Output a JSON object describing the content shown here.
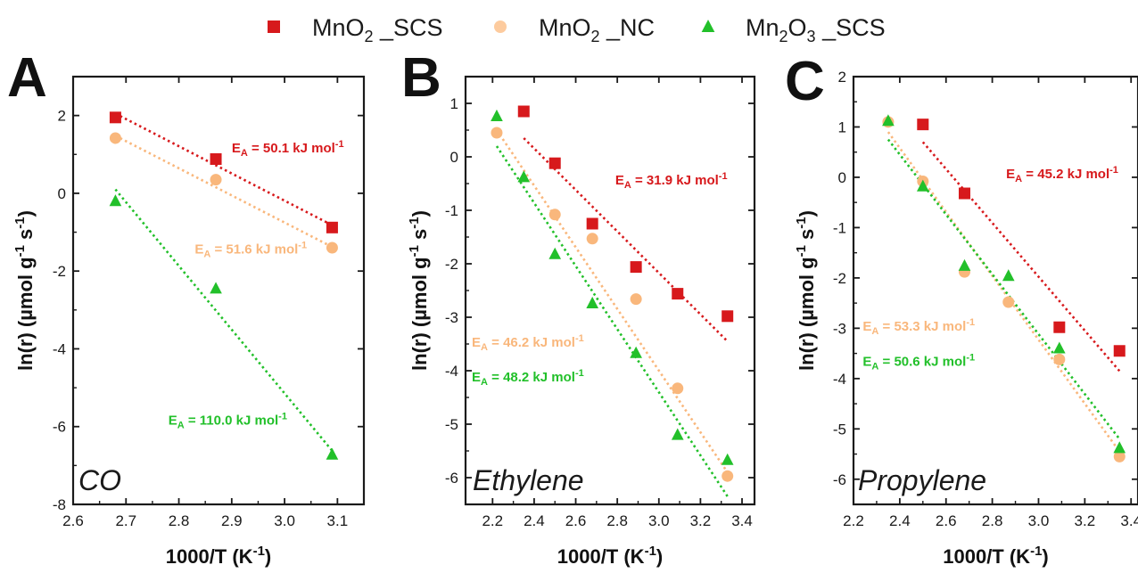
{
  "legend": {
    "items": [
      {
        "base": "MnO",
        "sub": "2",
        "suffix": " _SCS",
        "color": "#d7191c",
        "marker": "square"
      },
      {
        "base": "MnO",
        "sub": "2",
        "suffix": " _NC",
        "color": "#fdcb9e",
        "marker": "circle"
      },
      {
        "base": "Mn",
        "sub": "2",
        "mid": "O",
        "sub2": "3",
        "suffix": " _SCS",
        "color": "#22c02a",
        "marker": "triangle"
      }
    ]
  },
  "xlabel": {
    "main": "1000/T (K",
    "sup": "-1",
    "close": ")"
  },
  "ylabel": {
    "main": "ln(r) (µmol g",
    "sup1": "-1",
    "mid": " s",
    "sup2": "-1",
    "close": ")"
  },
  "ea_unit": {
    "prefix": " = ",
    "unit": " kJ mol",
    "sup": "-1"
  },
  "chart_data": [
    {
      "type": "scatter",
      "panel_letter": "A",
      "annotation": "CO",
      "xlim": [
        2.6,
        3.15
      ],
      "ylim": [
        -8,
        3
      ],
      "xticks": [
        "2.6",
        "2.7",
        "2.8",
        "2.9",
        "3.0",
        "3.1"
      ],
      "xtick_values": [
        2.6,
        2.7,
        2.8,
        2.9,
        3.0,
        3.1
      ],
      "yticks": [
        "-8",
        "-6",
        "-4",
        "-2",
        "0",
        "2"
      ],
      "ytick_values": [
        -8,
        -6,
        -4,
        -2,
        0,
        2
      ],
      "series": [
        {
          "name": "MnO2 _SCS",
          "color": "#d7191c",
          "marker": "square",
          "x": [
            2.68,
            2.87,
            3.09
          ],
          "y": [
            1.95,
            0.88,
            -0.88
          ],
          "fit": {
            "x": [
              2.68,
              3.09
            ],
            "y": [
              2.05,
              -0.82
            ]
          },
          "ea": "50.1",
          "label_x": 2.9,
          "label_y": 1.05
        },
        {
          "name": "MnO2 _NC",
          "color": "#f9b77c",
          "marker": "circle",
          "x": [
            2.68,
            2.87,
            3.09
          ],
          "y": [
            1.42,
            0.35,
            -1.4
          ],
          "fit": {
            "x": [
              2.68,
              3.09
            ],
            "y": [
              1.48,
              -1.38
            ]
          },
          "ea": "51.6",
          "label_x": 2.83,
          "label_y": -1.55
        },
        {
          "name": "Mn2O3 _SCS",
          "color": "#22c02a",
          "marker": "triangle",
          "x": [
            2.68,
            2.87,
            3.09
          ],
          "y": [
            -0.2,
            -2.45,
            -6.72
          ],
          "fit": {
            "x": [
              2.68,
              3.09
            ],
            "y": [
              0.1,
              -6.62
            ]
          },
          "ea": "110.0",
          "label_x": 2.78,
          "label_y": -5.95
        }
      ]
    },
    {
      "type": "scatter",
      "panel_letter": "B",
      "annotation": "Ethylene",
      "xlim": [
        2.07,
        3.46
      ],
      "ylim": [
        -6.5,
        1.5
      ],
      "xticks": [
        "2.2",
        "2.4",
        "2.6",
        "2.8",
        "3.0",
        "3.2",
        "3.4"
      ],
      "xtick_values": [
        2.2,
        2.4,
        2.6,
        2.8,
        3.0,
        3.2,
        3.4
      ],
      "yticks": [
        "-6",
        "-5",
        "-4",
        "-3",
        "-2",
        "-1",
        "0",
        "1"
      ],
      "ytick_values": [
        -6,
        -5,
        -4,
        -3,
        -2,
        -1,
        0,
        1
      ],
      "series": [
        {
          "name": "MnO2 _SCS",
          "color": "#d7191c",
          "marker": "square",
          "x": [
            2.35,
            2.5,
            2.68,
            2.89,
            3.09,
            3.33
          ],
          "y": [
            0.85,
            -0.12,
            -1.25,
            -2.06,
            -2.56,
            -2.98
          ],
          "fit": {
            "x": [
              2.35,
              3.33
            ],
            "y": [
              0.35,
              -3.45
            ]
          },
          "ea": "31.9",
          "label_x": 2.79,
          "label_y": -0.52
        },
        {
          "name": "MnO2 _NC",
          "color": "#f9b77c",
          "marker": "circle",
          "x": [
            2.22,
            2.5,
            2.68,
            2.89,
            3.09,
            3.33
          ],
          "y": [
            0.45,
            -1.08,
            -1.53,
            -2.66,
            -4.33,
            -5.97
          ],
          "fit": {
            "x": [
              2.22,
              3.33
            ],
            "y": [
              0.5,
              -5.9
            ]
          },
          "ea": "46.2",
          "label_x": 2.1,
          "label_y": -3.55
        },
        {
          "name": "Mn2O3 _SCS",
          "color": "#22c02a",
          "marker": "triangle",
          "x": [
            2.22,
            2.35,
            2.5,
            2.68,
            2.89,
            3.09,
            3.33
          ],
          "y": [
            0.76,
            -0.38,
            -1.82,
            -2.74,
            -3.67,
            -5.2,
            -5.67
          ],
          "fit": {
            "x": [
              2.22,
              3.33
            ],
            "y": [
              0.2,
              -6.35
            ]
          },
          "ea": "48.2",
          "label_x": 2.1,
          "label_y": -4.2
        }
      ]
    },
    {
      "type": "scatter",
      "panel_letter": "C",
      "annotation": "Propylene",
      "xlim": [
        2.2,
        3.43
      ],
      "ylim": [
        -6.5,
        2
      ],
      "xticks": [
        "2.2",
        "2.4",
        "2.6",
        "2.8",
        "3.0",
        "3.2",
        "3.4"
      ],
      "xtick_values": [
        2.2,
        2.4,
        2.6,
        2.8,
        3.0,
        3.2,
        3.4
      ],
      "yticks": [
        "-6",
        "-5",
        "-4",
        "-3",
        "-2",
        "-1",
        "0",
        "1",
        "2"
      ],
      "ytick_values": [
        -6,
        -5,
        -4,
        -3,
        -2,
        -1,
        0,
        1,
        2
      ],
      "series": [
        {
          "name": "MnO2 _SCS",
          "color": "#d7191c",
          "marker": "square",
          "x": [
            2.5,
            2.68,
            3.09,
            3.35
          ],
          "y": [
            1.05,
            -0.32,
            -2.98,
            -3.45
          ],
          "fit": {
            "x": [
              2.5,
              3.35
            ],
            "y": [
              0.7,
              -3.85
            ]
          },
          "ea": "45.2",
          "label_x": 2.86,
          "label_y": -0.02
        },
        {
          "name": "MnO2 _NC",
          "color": "#f9b77c",
          "marker": "circle",
          "x": [
            2.35,
            2.5,
            2.68,
            2.87,
            3.09,
            3.35
          ],
          "y": [
            1.1,
            -0.08,
            -1.88,
            -2.48,
            -3.62,
            -5.55
          ],
          "fit": {
            "x": [
              2.35,
              3.35
            ],
            "y": [
              0.9,
              -5.45
            ]
          },
          "ea": "53.3",
          "label_x": 2.24,
          "label_y": -3.05
        },
        {
          "name": "Mn2O3 _SCS",
          "color": "#22c02a",
          "marker": "triangle",
          "x": [
            2.35,
            2.5,
            2.68,
            2.87,
            3.09,
            3.35
          ],
          "y": [
            1.12,
            -0.18,
            -1.76,
            -1.96,
            -3.4,
            -5.38
          ],
          "fit": {
            "x": [
              2.35,
              3.35
            ],
            "y": [
              0.75,
              -5.2
            ]
          },
          "ea": "50.6",
          "label_x": 2.24,
          "label_y": -3.75
        }
      ]
    }
  ]
}
